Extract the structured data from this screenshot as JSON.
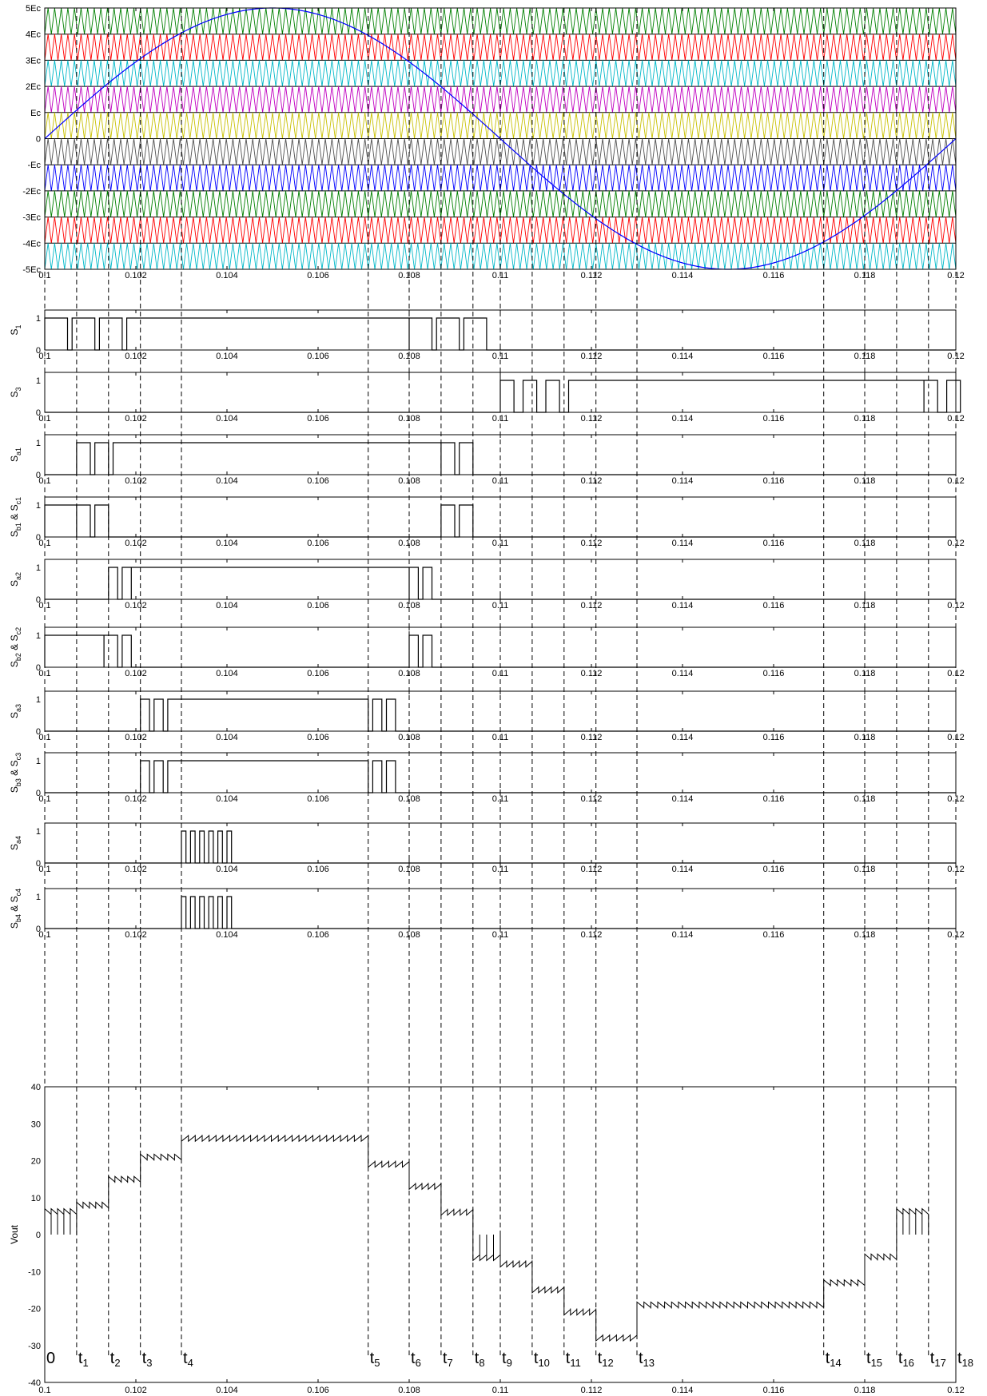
{
  "chart_data": [
    {
      "type": "line",
      "id": "carriers",
      "xlim": [
        0.1,
        0.12
      ],
      "ylim": [
        -5,
        5
      ],
      "x_ticks": [
        "0.1",
        "0.102",
        "0.104",
        "0.106",
        "0.108",
        "0.11",
        "0.112",
        "0.114",
        "0.116",
        "0.118",
        "0.12"
      ],
      "y_ticks": [
        "5Ec",
        "4Ec",
        "3Ec",
        "2Ec",
        "Ec",
        "0",
        "-Ec",
        "-2Ec",
        "-3Ec",
        "-4Ec",
        "-5Ec"
      ],
      "reference": {
        "type": "sine",
        "amplitude": 5,
        "frequency_hz": 50,
        "color": "#0000ff"
      },
      "carrier_periods_per_band": 138,
      "carrier_bands": [
        {
          "range": [
            4,
            5
          ],
          "color": "#008000"
        },
        {
          "range": [
            3,
            4
          ],
          "color": "#ff0000"
        },
        {
          "range": [
            2,
            3
          ],
          "color": "#00b8c8"
        },
        {
          "range": [
            1,
            2
          ],
          "color": "#c000c0"
        },
        {
          "range": [
            0,
            1
          ],
          "color": "#c8c000"
        },
        {
          "range": [
            -1,
            0
          ],
          "color": "#505050"
        },
        {
          "range": [
            -2,
            -1
          ],
          "color": "#0000ff"
        },
        {
          "range": [
            -3,
            -2
          ],
          "color": "#008000"
        },
        {
          "range": [
            -4,
            -3
          ],
          "color": "#ff0000"
        },
        {
          "range": [
            -5,
            -4
          ],
          "color": "#00b8c8"
        }
      ]
    },
    {
      "type": "line",
      "id": "S1",
      "label_main": "S",
      "label_sub": "1",
      "ylim": [
        0,
        1
      ],
      "y_ticks": [
        "0",
        "1"
      ],
      "on": [
        [
          0.1,
          0.1005
        ],
        [
          0.1006,
          0.1011
        ],
        [
          0.1012,
          0.1017
        ],
        [
          0.1018,
          0.108
        ],
        [
          0.108,
          0.1085
        ],
        [
          0.1086,
          0.1091
        ],
        [
          0.1092,
          0.1097
        ]
      ],
      "x_ticks_suffix": ""
    },
    {
      "type": "line",
      "id": "S3",
      "label_main": "S",
      "label_sub": "3",
      "ylim": [
        0,
        1
      ],
      "y_ticks": [
        "0",
        "1"
      ],
      "on": [
        [
          0.11,
          0.1103
        ],
        [
          0.1105,
          0.1108
        ],
        [
          0.111,
          0.1113
        ],
        [
          0.1115,
          0.1193
        ],
        [
          0.1193,
          0.1196
        ],
        [
          0.1198,
          0.1201
        ]
      ]
    },
    {
      "type": "line",
      "id": "Sa1",
      "label_main": "S",
      "label_sub": "a1",
      "ylim": [
        0,
        1
      ],
      "y_ticks": [
        "0",
        "1"
      ],
      "on": [
        [
          0.1007,
          0.101
        ],
        [
          0.1011,
          0.1014
        ],
        [
          0.1015,
          0.1087
        ],
        [
          0.1087,
          0.109
        ],
        [
          0.1091,
          0.1094
        ]
      ]
    },
    {
      "type": "line",
      "id": "Sb1Sc1",
      "label_main": "S",
      "label_sub": "b1",
      "label_mid": " & S",
      "label_sub2": "c1",
      "ylim": [
        0,
        1
      ],
      "y_ticks": [
        "0",
        "1"
      ],
      "on": [
        [
          0.1,
          0.1007
        ],
        [
          0.1007,
          0.101
        ],
        [
          0.1011,
          0.1014
        ],
        [
          0.1087,
          0.109
        ],
        [
          0.1091,
          0.1094
        ]
      ]
    },
    {
      "type": "line",
      "id": "Sa2",
      "label_main": "S",
      "label_sub": "a2",
      "ylim": [
        0,
        1
      ],
      "y_ticks": [
        "0",
        "1"
      ],
      "on": [
        [
          0.1014,
          0.1016
        ],
        [
          0.1017,
          0.1019
        ],
        [
          0.1019,
          0.108
        ],
        [
          0.108,
          0.1082
        ],
        [
          0.1083,
          0.1085
        ]
      ]
    },
    {
      "type": "line",
      "id": "Sb2Sc2",
      "label_main": "S",
      "label_sub": "b2",
      "label_mid": " & S",
      "label_sub2": "c2",
      "ylim": [
        0,
        1
      ],
      "y_ticks": [
        "0",
        "1"
      ],
      "on": [
        [
          0.1,
          0.1013
        ],
        [
          0.1013,
          0.1016
        ],
        [
          0.1017,
          0.1019
        ],
        [
          0.108,
          0.1082
        ],
        [
          0.1083,
          0.1085
        ]
      ]
    },
    {
      "type": "line",
      "id": "Sa3",
      "label_main": "S",
      "label_sub": "a3",
      "ylim": [
        0,
        1
      ],
      "y_ticks": [
        "0",
        "1"
      ],
      "on": [
        [
          0.1021,
          0.1023
        ],
        [
          0.1024,
          0.1026
        ],
        [
          0.1027,
          0.1071
        ],
        [
          0.1072,
          0.1074
        ],
        [
          0.1075,
          0.1077
        ]
      ]
    },
    {
      "type": "line",
      "id": "Sb3Sc3",
      "label_main": "S",
      "label_sub": "b3",
      "label_mid": " & S",
      "label_sub2": "c3",
      "ylim": [
        0,
        1
      ],
      "y_ticks": [
        "0",
        "1"
      ],
      "on": [
        [
          0.1021,
          0.1023
        ],
        [
          0.1024,
          0.1026
        ],
        [
          0.1027,
          0.1071
        ],
        [
          0.1072,
          0.1074
        ],
        [
          0.1075,
          0.1077
        ]
      ]
    },
    {
      "type": "line",
      "id": "Sa4",
      "label_main": "S",
      "label_sub": "a4",
      "ylim": [
        0,
        1
      ],
      "y_ticks": [
        "0",
        "1"
      ],
      "on": [
        [
          0.103,
          0.1031
        ],
        [
          0.1032,
          0.1033
        ],
        [
          0.1034,
          0.1035
        ],
        [
          0.1036,
          0.1037
        ],
        [
          0.1038,
          0.1039
        ],
        [
          0.104,
          0.1041
        ]
      ]
    },
    {
      "type": "line",
      "id": "Sb4Sc4",
      "label_main": "S",
      "label_sub": "b4",
      "label_mid": " & S",
      "label_sub2": "c4",
      "ylim": [
        0,
        1
      ],
      "y_ticks": [
        "0",
        "1"
      ],
      "on": [
        [
          0.103,
          0.1031
        ],
        [
          0.1032,
          0.1033
        ],
        [
          0.1034,
          0.1035
        ],
        [
          0.1036,
          0.1037
        ],
        [
          0.1038,
          0.1039
        ],
        [
          0.104,
          0.1041
        ]
      ]
    },
    {
      "type": "line",
      "id": "vout",
      "ylabel": "Vout",
      "xlim": [
        0.1,
        0.12
      ],
      "ylim": [
        -40,
        40
      ],
      "y_ticks": [
        "40",
        "30",
        "20",
        "10",
        "0",
        "-10",
        "-20",
        "-30",
        "-40"
      ],
      "x_ticks": [
        "0.1",
        "0.102",
        "0.104",
        "0.106",
        "0.108",
        "0.11",
        "0.112",
        "0.114",
        "0.116",
        "0.118",
        "0.12"
      ],
      "step_levels": [
        0,
        7,
        14,
        20,
        27,
        20,
        14,
        7,
        0,
        -7,
        -14,
        -20,
        -27,
        -20,
        -14,
        -7,
        0
      ],
      "marker_times": [
        0.1,
        0.1007,
        0.1014,
        0.1021,
        0.103,
        0.1071,
        0.108,
        0.1087,
        0.1094,
        0.11,
        0.1107,
        0.1114,
        0.1121,
        0.113,
        0.1171,
        0.118,
        0.1187,
        0.1194,
        0.12
      ]
    }
  ],
  "time_labels": [
    {
      "main": "0",
      "sub": ""
    },
    {
      "main": "t",
      "sub": "1"
    },
    {
      "main": "t",
      "sub": "2"
    },
    {
      "main": "t",
      "sub": "3"
    },
    {
      "main": "t",
      "sub": "4"
    },
    {
      "main": "t",
      "sub": "5"
    },
    {
      "main": "t",
      "sub": "6"
    },
    {
      "main": "t",
      "sub": "7"
    },
    {
      "main": "t",
      "sub": "8"
    },
    {
      "main": "t",
      "sub": "9"
    },
    {
      "main": "t",
      "sub": "10"
    },
    {
      "main": "t",
      "sub": "11"
    },
    {
      "main": "t",
      "sub": "12"
    },
    {
      "main": "t",
      "sub": "13"
    },
    {
      "main": "t",
      "sub": "14"
    },
    {
      "main": "t",
      "sub": "15"
    },
    {
      "main": "t",
      "sub": "16"
    },
    {
      "main": "t",
      "sub": "17"
    },
    {
      "main": "t",
      "sub": "18"
    }
  ]
}
